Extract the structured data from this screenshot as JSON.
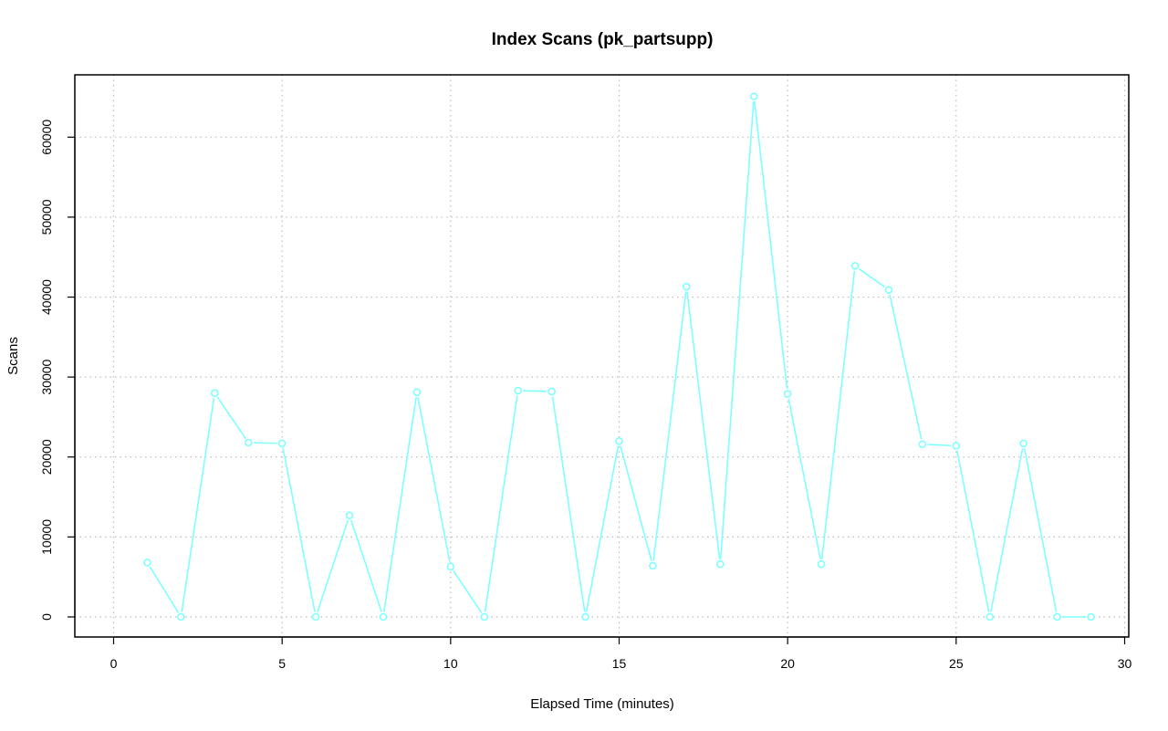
{
  "chart_data": {
    "type": "line",
    "title": "Index Scans (pk_partsupp)",
    "xlabel": "Elapsed Time (minutes)",
    "ylabel": "Scans",
    "xlim": [
      0,
      30
    ],
    "ylim": [
      0,
      65000
    ],
    "x_ticks": [
      0,
      5,
      10,
      15,
      20,
      25,
      30
    ],
    "y_ticks": [
      0,
      10000,
      20000,
      30000,
      40000,
      50000,
      60000
    ],
    "grid": true,
    "series": [
      {
        "color": "#7fffff",
        "x": [
          1,
          2,
          3,
          4,
          5,
          6,
          7,
          8,
          9,
          10,
          11,
          12,
          13,
          14,
          15,
          16,
          17,
          18,
          19,
          20,
          21,
          22,
          23,
          24,
          25,
          26,
          27,
          28,
          29
        ],
        "y": [
          6800,
          0,
          28000,
          21800,
          21700,
          0,
          12700,
          0,
          28100,
          6300,
          0,
          28300,
          28200,
          0,
          22000,
          6400,
          41300,
          6600,
          65100,
          27900,
          6600,
          43900,
          40900,
          21600,
          21400,
          0,
          21700,
          0,
          0
        ]
      }
    ]
  }
}
